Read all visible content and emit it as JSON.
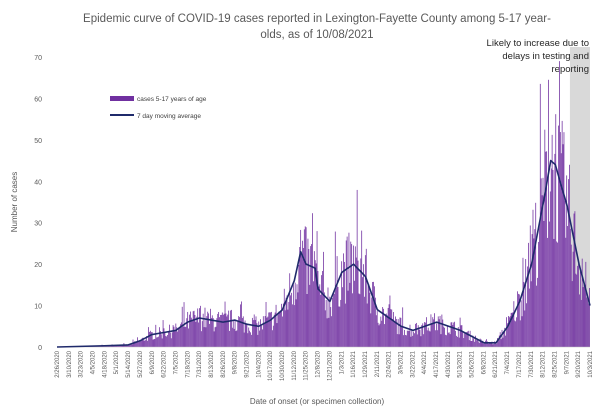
{
  "chart_data": {
    "type": "bar",
    "title_line1": "Epidemic curve of COVID-19 cases reported in Lexington-Fayette County among 5-17 year-",
    "title_line2": "olds, as of 10/08/2021",
    "xlabel": "Date of onset (or specimen collection)",
    "ylabel": "Number of cases",
    "ylim": [
      0,
      70
    ],
    "yticks": [
      "0",
      "10",
      "20",
      "30",
      "40",
      "50",
      "60",
      "70"
    ],
    "grid": false,
    "legend": {
      "placement": "top-left",
      "bar_label": "cases 5-17 years of age",
      "line_label": "7 day moving average"
    },
    "annotation": {
      "lines": [
        "Likely to increase due to",
        "delays in testing and",
        "reporting"
      ],
      "from_x": "9/10/2021",
      "to_x": "10/2/2021"
    },
    "colors": {
      "bars": "#7030A0",
      "line": "#1F2A6B",
      "shade": "#D9D9D9",
      "text": "#595959"
    },
    "x_start": "2/26/2020",
    "x_end": "10/2/2021",
    "x_tick_labels": [
      "2/26/2020",
      "3/10/2020",
      "3/23/2020",
      "4/5/2020",
      "4/18/2020",
      "5/1/2020",
      "5/14/2020",
      "5/27/2020",
      "6/9/2020",
      "6/22/2020",
      "7/5/2020",
      "7/18/2020",
      "7/31/2020",
      "8/13/2020",
      "8/26/2020",
      "9/8/2020",
      "9/21/2020",
      "10/4/2020",
      "10/17/2020",
      "10/30/2020",
      "11/12/2020",
      "11/25/2020",
      "12/8/2020",
      "12/21/2020",
      "1/3/2021",
      "1/16/2021",
      "1/29/2021",
      "2/11/2021",
      "2/24/2021",
      "3/9/2021",
      "3/22/2021",
      "4/4/2021",
      "4/17/2021",
      "4/30/2021",
      "5/13/2021",
      "5/26/2021",
      "6/8/2021",
      "6/21/2021",
      "7/4/2021",
      "7/17/2021",
      "7/30/2021",
      "8/12/2021",
      "8/25/2021",
      "9/7/2021",
      "9/20/2021",
      "10/3/2021"
    ],
    "moving_average": [
      {
        "x": "2/26/2020",
        "y": 0
      },
      {
        "x": "4/18/2020",
        "y": 0.3
      },
      {
        "x": "5/14/2020",
        "y": 0.5
      },
      {
        "x": "5/27/2020",
        "y": 1.5
      },
      {
        "x": "6/9/2020",
        "y": 3
      },
      {
        "x": "6/22/2020",
        "y": 3.5
      },
      {
        "x": "7/5/2020",
        "y": 4
      },
      {
        "x": "7/18/2020",
        "y": 6
      },
      {
        "x": "7/31/2020",
        "y": 7
      },
      {
        "x": "8/13/2020",
        "y": 6.5
      },
      {
        "x": "8/26/2020",
        "y": 6
      },
      {
        "x": "9/8/2020",
        "y": 6.5
      },
      {
        "x": "9/21/2020",
        "y": 5.5
      },
      {
        "x": "10/4/2020",
        "y": 5
      },
      {
        "x": "10/17/2020",
        "y": 6.5
      },
      {
        "x": "10/30/2020",
        "y": 9
      },
      {
        "x": "11/12/2020",
        "y": 16
      },
      {
        "x": "11/19/2020",
        "y": 23
      },
      {
        "x": "11/25/2020",
        "y": 20
      },
      {
        "x": "12/5/2020",
        "y": 19
      },
      {
        "x": "12/8/2020",
        "y": 14
      },
      {
        "x": "12/21/2020",
        "y": 11
      },
      {
        "x": "1/3/2021",
        "y": 18
      },
      {
        "x": "1/16/2021",
        "y": 20
      },
      {
        "x": "1/29/2021",
        "y": 17
      },
      {
        "x": "2/11/2021",
        "y": 9
      },
      {
        "x": "2/24/2021",
        "y": 7
      },
      {
        "x": "3/9/2021",
        "y": 5
      },
      {
        "x": "3/22/2021",
        "y": 4
      },
      {
        "x": "4/4/2021",
        "y": 5
      },
      {
        "x": "4/17/2021",
        "y": 6
      },
      {
        "x": "4/30/2021",
        "y": 5
      },
      {
        "x": "5/13/2021",
        "y": 4
      },
      {
        "x": "5/26/2021",
        "y": 2.5
      },
      {
        "x": "6/8/2021",
        "y": 1
      },
      {
        "x": "6/21/2021",
        "y": 1
      },
      {
        "x": "7/4/2021",
        "y": 5
      },
      {
        "x": "7/17/2021",
        "y": 11
      },
      {
        "x": "7/30/2021",
        "y": 20
      },
      {
        "x": "8/12/2021",
        "y": 35
      },
      {
        "x": "8/20/2021",
        "y": 45
      },
      {
        "x": "8/25/2021",
        "y": 44
      },
      {
        "x": "9/7/2021",
        "y": 34
      },
      {
        "x": "9/20/2021",
        "y": 20
      },
      {
        "x": "10/2/2021",
        "y": 10
      }
    ]
  }
}
